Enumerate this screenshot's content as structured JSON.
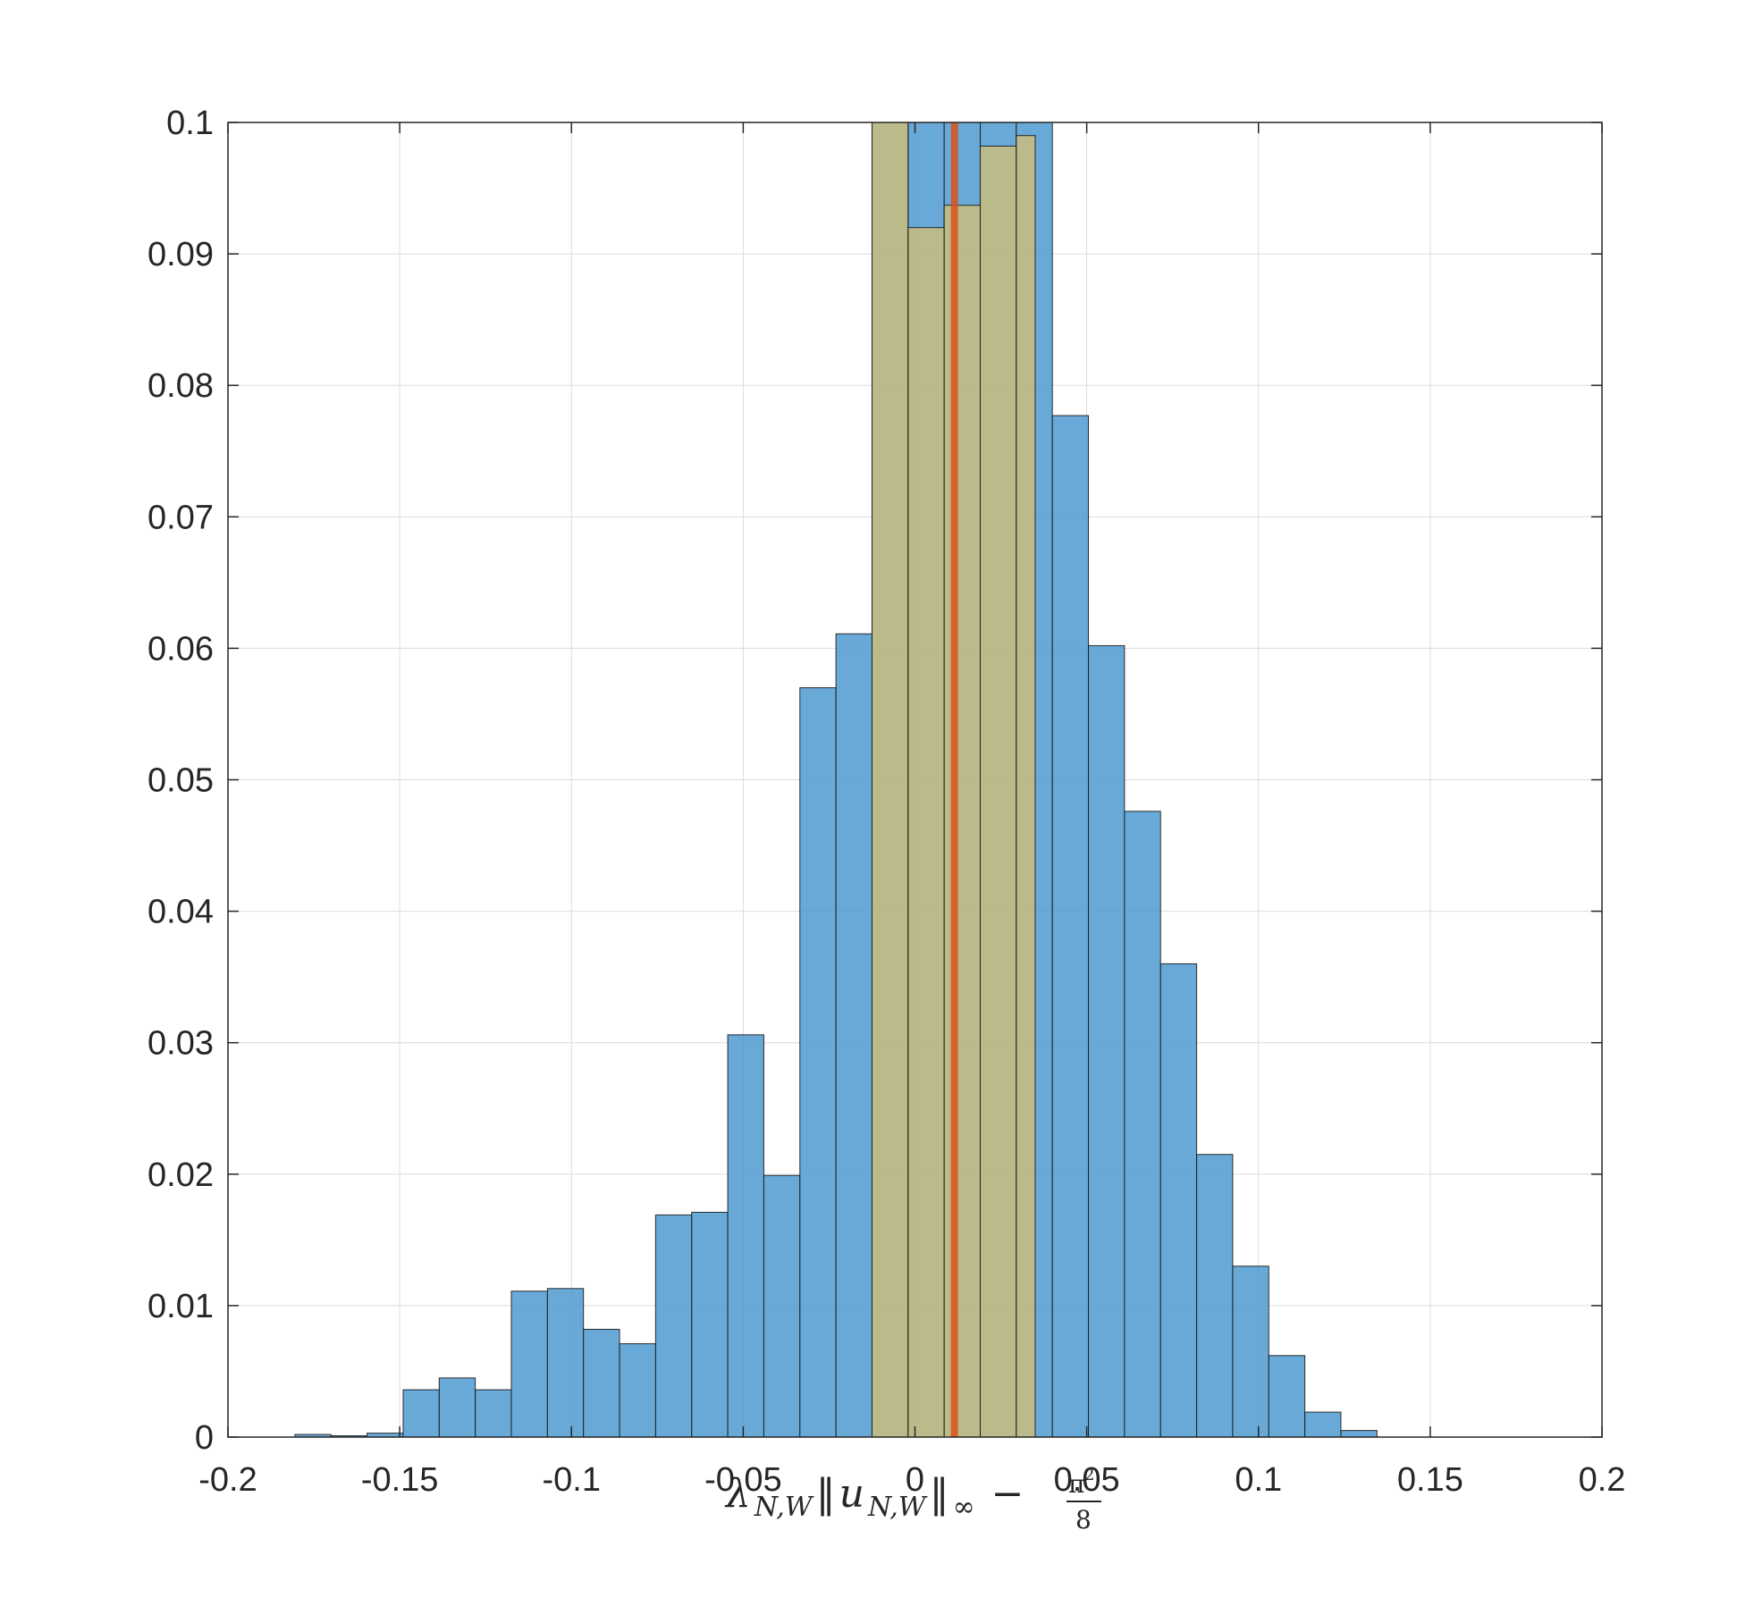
{
  "chart_data": {
    "type": "bar",
    "title": "",
    "xlabel": {
      "lambda": "λ",
      "sub": "N,W",
      "norm_open": "‖",
      "u": "u",
      "norm_close": "‖",
      "infinity": "∞",
      "minus": "−",
      "frac_num": "π",
      "frac_sup": "2",
      "frac_den": "8"
    },
    "ylabel": "",
    "xlim": [
      -0.2,
      0.2
    ],
    "ylim": [
      0,
      0.1
    ],
    "grid": true,
    "x_ticks": [
      -0.2,
      -0.15,
      -0.1,
      -0.05,
      0,
      0.05,
      0.1,
      0.15,
      0.2
    ],
    "x_tick_labels": [
      "-0.2",
      "-0.15",
      "-0.1",
      "-0.05",
      "0",
      "0.05",
      "0.1",
      "0.15",
      "0.2"
    ],
    "y_ticks": [
      0,
      0.01,
      0.02,
      0.03,
      0.04,
      0.05,
      0.06,
      0.07,
      0.08,
      0.09,
      0.1
    ],
    "y_tick_labels": [
      "0",
      "0.01",
      "0.02",
      "0.03",
      "0.04",
      "0.05",
      "0.06",
      "0.07",
      "0.08",
      "0.09",
      "0.1"
    ],
    "series": [
      {
        "color": "#0072BD",
        "fill_color": "#4d9ad1",
        "opacity": 0.85,
        "edges": [
          -0.1805,
          -0.17,
          -0.1595,
          -0.149,
          -0.1385,
          -0.128,
          -0.1175,
          -0.107,
          -0.0965,
          -0.086,
          -0.0755,
          -0.065,
          -0.0545,
          -0.044,
          -0.0335,
          -0.023,
          -0.0125,
          -0.002,
          0.0085,
          0.019,
          0.0295,
          0.04,
          0.0505,
          0.061,
          0.0715,
          0.082,
          0.0925,
          0.103,
          0.1135,
          0.124,
          0.1345
        ],
        "values": [
          0.0002,
          0.0001,
          0.0003,
          0.0036,
          0.0045,
          0.0036,
          0.0111,
          0.0113,
          0.0082,
          0.0071,
          0.0169,
          0.0171,
          0.0306,
          0.0199,
          0.057,
          0.0611,
          0.1,
          0.1,
          0.1,
          0.1,
          0.1,
          0.0777,
          0.0602,
          0.0476,
          0.036,
          0.0215,
          0.013,
          0.0062,
          0.0019,
          0.0005
        ]
      },
      {
        "color": "#EDB120",
        "fill_color": "#f4c757",
        "opacity": 0.6,
        "edges": [
          -0.0125,
          -0.002,
          0.0085,
          0.019,
          0.0295,
          0.035
        ],
        "values": [
          0.1,
          0.092,
          0.0937,
          0.0982,
          0.099
        ]
      }
    ],
    "vertical_line": {
      "x": 0.0115,
      "color": "#D95319"
    }
  }
}
